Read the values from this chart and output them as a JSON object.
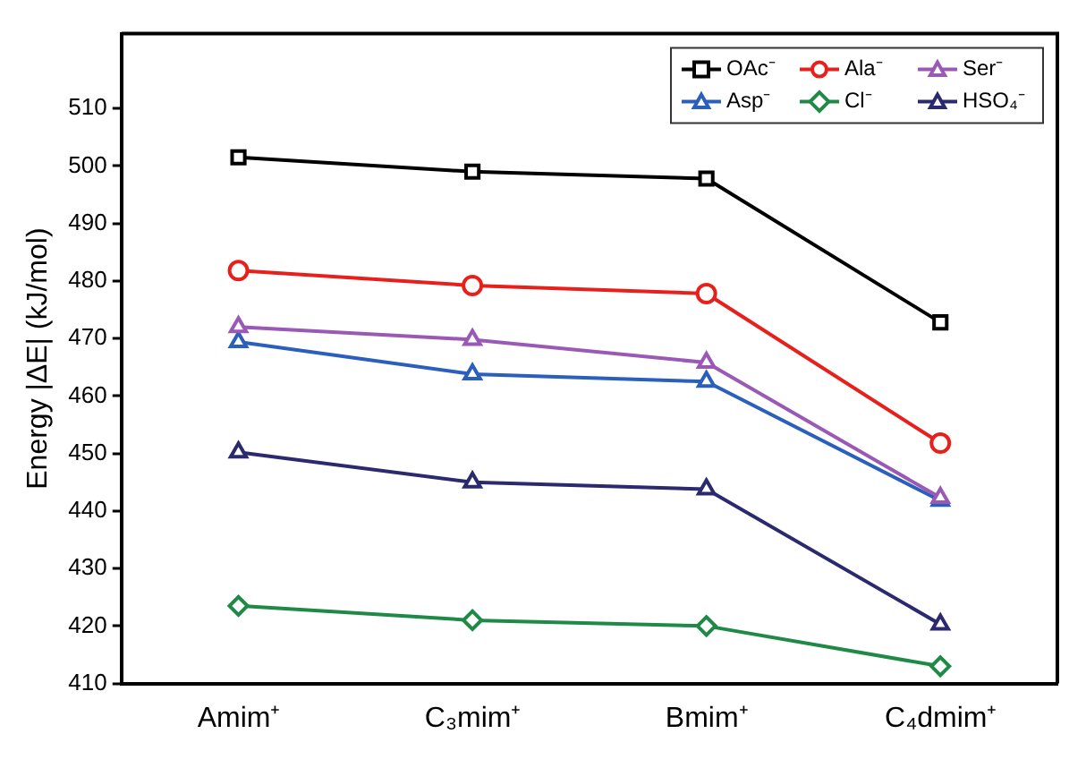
{
  "chart_data": {
    "type": "line",
    "ylabel": "Energy |ΔE| (kJ/mol)",
    "categories": [
      "Amim⁺",
      "C₃mim⁺",
      "Bmim⁺",
      "C₄dmim⁺"
    ],
    "series": [
      {
        "name": "OAc⁻",
        "color": "#000000",
        "marker": "square",
        "values": [
          501.5,
          499.0,
          497.8,
          472.8
        ]
      },
      {
        "name": "Ala⁻",
        "color": "#e8201c",
        "marker": "circle",
        "values": [
          481.8,
          479.2,
          477.8,
          451.8
        ]
      },
      {
        "name": "Ser⁻",
        "color": "#9b59b6",
        "marker": "triangle",
        "values": [
          472.0,
          469.8,
          465.8,
          442.3
        ]
      },
      {
        "name": "Asp⁻",
        "color": "#2a5fbd",
        "marker": "triangle",
        "values": [
          469.4,
          463.8,
          462.5,
          441.8
        ]
      },
      {
        "name": "Cl⁻",
        "color": "#1e8a46",
        "marker": "diamond",
        "values": [
          423.5,
          421.0,
          420.0,
          413.0
        ]
      },
      {
        "name": "HSO₄⁻",
        "color": "#2b2a6e",
        "marker": "triangle",
        "values": [
          450.2,
          445.0,
          443.8,
          420.3
        ]
      }
    ],
    "ylim": [
      410,
      523
    ],
    "yticks": [
      410,
      420,
      430,
      440,
      450,
      460,
      470,
      480,
      490,
      500,
      510
    ],
    "grid": false,
    "legend": "top right",
    "line_style": "solid"
  }
}
